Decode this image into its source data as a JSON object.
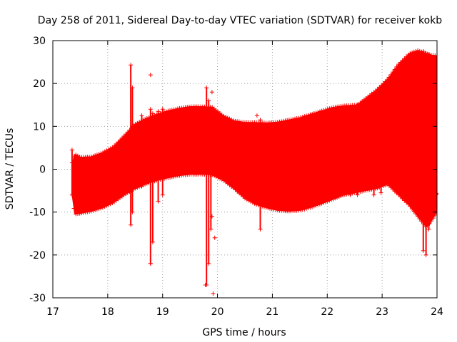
{
  "chart_data": {
    "type": "scatter",
    "title": "Day 258 of 2011, Sidereal Day-to-day VTEC variation (SDTVAR) for receiver kokb",
    "xlabel": "GPS time / hours",
    "ylabel": "SDTVAR / TECUs",
    "xlim": [
      17,
      24
    ],
    "ylim": [
      -30,
      30
    ],
    "xticks": [
      "17",
      "18",
      "19",
      "20",
      "21",
      "22",
      "23",
      "24"
    ],
    "yticks": [
      "-30",
      "-20",
      "-10",
      "0",
      "10",
      "20",
      "30"
    ],
    "grid": true,
    "marker": "+",
    "colors": {
      "series": "#ff0000",
      "grid": "#a0a0a0",
      "axes": "#000000"
    },
    "series": [
      {
        "name": "SDTVAR",
        "upper_envelope": {
          "x": [
            17.35,
            17.4,
            17.5,
            17.7,
            17.9,
            18.1,
            18.3,
            18.5,
            18.7,
            18.9,
            19.1,
            19.3,
            19.5,
            19.7,
            19.9,
            20.1,
            20.3,
            20.5,
            20.7,
            20.9,
            21.1,
            21.3,
            21.5,
            21.7,
            21.9,
            22.1,
            22.3,
            22.55,
            22.7,
            22.9,
            23.1,
            23.3,
            23.5,
            23.65,
            23.8,
            23.9,
            24.0
          ],
          "y": [
            1.5,
            3.5,
            2.8,
            2.9,
            3.8,
            5.2,
            7.8,
            10.5,
            11.8,
            12.8,
            13.6,
            14.2,
            14.6,
            14.6,
            14.5,
            12.5,
            11.3,
            10.9,
            10.9,
            10.8,
            11.0,
            11.5,
            12.0,
            12.8,
            13.6,
            14.4,
            14.8,
            15.0,
            16.5,
            18.5,
            21.0,
            24.5,
            27.0,
            27.7,
            27.0,
            26.6,
            26.5
          ]
        },
        "lower_envelope": {
          "x": [
            17.35,
            17.4,
            17.5,
            17.7,
            17.9,
            18.1,
            18.3,
            18.5,
            18.7,
            18.9,
            19.1,
            19.3,
            19.5,
            19.7,
            19.9,
            20.1,
            20.3,
            20.5,
            20.7,
            20.9,
            21.1,
            21.3,
            21.5,
            21.7,
            21.9,
            22.1,
            22.3,
            22.5,
            22.7,
            22.9,
            23.1,
            23.3,
            23.5,
            23.65,
            23.8,
            23.9,
            24.0
          ],
          "y": [
            -6.0,
            -10.5,
            -10.3,
            -9.8,
            -9.0,
            -7.8,
            -6.0,
            -4.5,
            -3.4,
            -2.6,
            -2.0,
            -1.5,
            -1.2,
            -1.2,
            -1.3,
            -2.5,
            -4.5,
            -6.8,
            -8.2,
            -9.0,
            -9.6,
            -9.8,
            -9.6,
            -8.9,
            -8.0,
            -7.0,
            -6.0,
            -5.5,
            -5.0,
            -4.5,
            -3.5,
            -6.0,
            -8.5,
            -11.0,
            -13.5,
            -12.0,
            -10.0
          ]
        },
        "spikes": [
          {
            "x": 17.35,
            "low": -6.0,
            "high": 4.5
          },
          {
            "x": 18.42,
            "low": -13.0,
            "high": 24.3
          },
          {
            "x": 18.45,
            "low": -10.0,
            "high": 19.0
          },
          {
            "x": 18.62,
            "low": -4.0,
            "high": 12.5
          },
          {
            "x": 18.78,
            "low": -22.0,
            "high": 14.0
          },
          {
            "x": 18.82,
            "low": -17.0,
            "high": 13.0
          },
          {
            "x": 18.92,
            "low": -7.5,
            "high": 13.5
          },
          {
            "x": 19.0,
            "low": -6.0,
            "high": 14.0
          },
          {
            "x": 19.8,
            "low": -27.0,
            "high": 19.0
          },
          {
            "x": 19.84,
            "low": -22.0,
            "high": 16.0
          },
          {
            "x": 19.88,
            "low": -14.0,
            "high": 14.0
          },
          {
            "x": 20.78,
            "low": -14.0,
            "high": 11.5
          },
          {
            "x": 22.42,
            "low": -6.0,
            "high": 14.5
          },
          {
            "x": 22.55,
            "low": -6.0,
            "high": 15.0
          },
          {
            "x": 22.85,
            "low": -6.0,
            "high": 15.5
          },
          {
            "x": 22.98,
            "low": -5.5,
            "high": 17.5
          },
          {
            "x": 23.75,
            "low": -19.0,
            "high": 27.5
          },
          {
            "x": 23.8,
            "low": -20.0,
            "high": 27.0
          },
          {
            "x": 23.85,
            "low": -14.0,
            "high": 26.8
          }
        ],
        "outliers": [
          {
            "x": 18.78,
            "y": 22.0
          },
          {
            "x": 19.9,
            "y": 18.0
          },
          {
            "x": 20.72,
            "y": 12.5
          },
          {
            "x": 19.92,
            "y": -29.0
          },
          {
            "x": 19.95,
            "y": -16.0
          },
          {
            "x": 19.9,
            "y": -11.0
          },
          {
            "x": 19.78,
            "y": -27.0
          },
          {
            "x": 18.78,
            "y": -22.0
          }
        ],
        "lower_branch": {
          "x": [
            22.7,
            22.9,
            23.1,
            23.3,
            23.5,
            23.7,
            23.85,
            24.0
          ],
          "y": [
            2.5,
            -1.0,
            -3.0,
            -4.5,
            -7.5,
            -10.5,
            -13.0,
            -5.5
          ]
        }
      }
    ]
  }
}
